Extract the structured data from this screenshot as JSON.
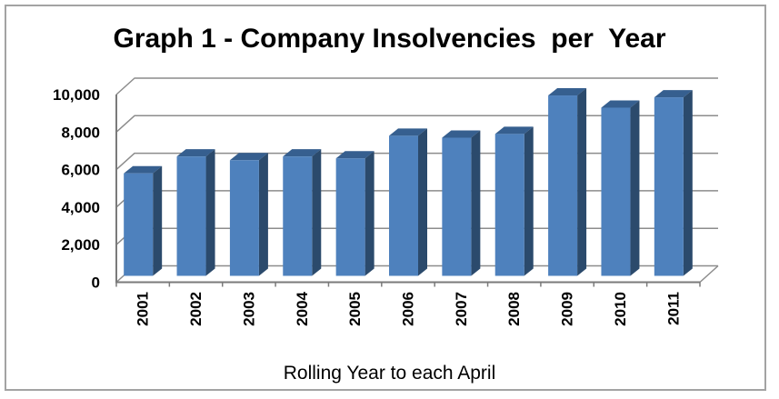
{
  "chart_data": {
    "type": "bar",
    "effect": "3d-columns",
    "title": "Graph 1 - Company Insolvencies  per  Year",
    "categories": [
      "2001",
      "2002",
      "2003",
      "2004",
      "2005",
      "2006",
      "2007",
      "2008",
      "2009",
      "2010",
      "2011"
    ],
    "values": [
      5800,
      6700,
      6500,
      6700,
      6600,
      7800,
      7700,
      7900,
      9950,
      9300,
      9850
    ],
    "xlabel": "Rolling Year to each April",
    "ylabel": "",
    "ylim": [
      0,
      10000
    ],
    "ytick_interval": 2000,
    "ytick_labels": [
      "0",
      "2,000",
      "4,000",
      "6,000",
      "8,000",
      "10,000"
    ],
    "grid": true,
    "legend": false,
    "colors": {
      "bar_front": "#4e81bd",
      "bar_side": "#2b4a6c",
      "bar_top": "#365f8f",
      "gridline": "#8c8c8c",
      "axis": "#7a7a7a",
      "frame_border": "#a3a3a3",
      "text": "#000000",
      "background": "#ffffff"
    }
  }
}
